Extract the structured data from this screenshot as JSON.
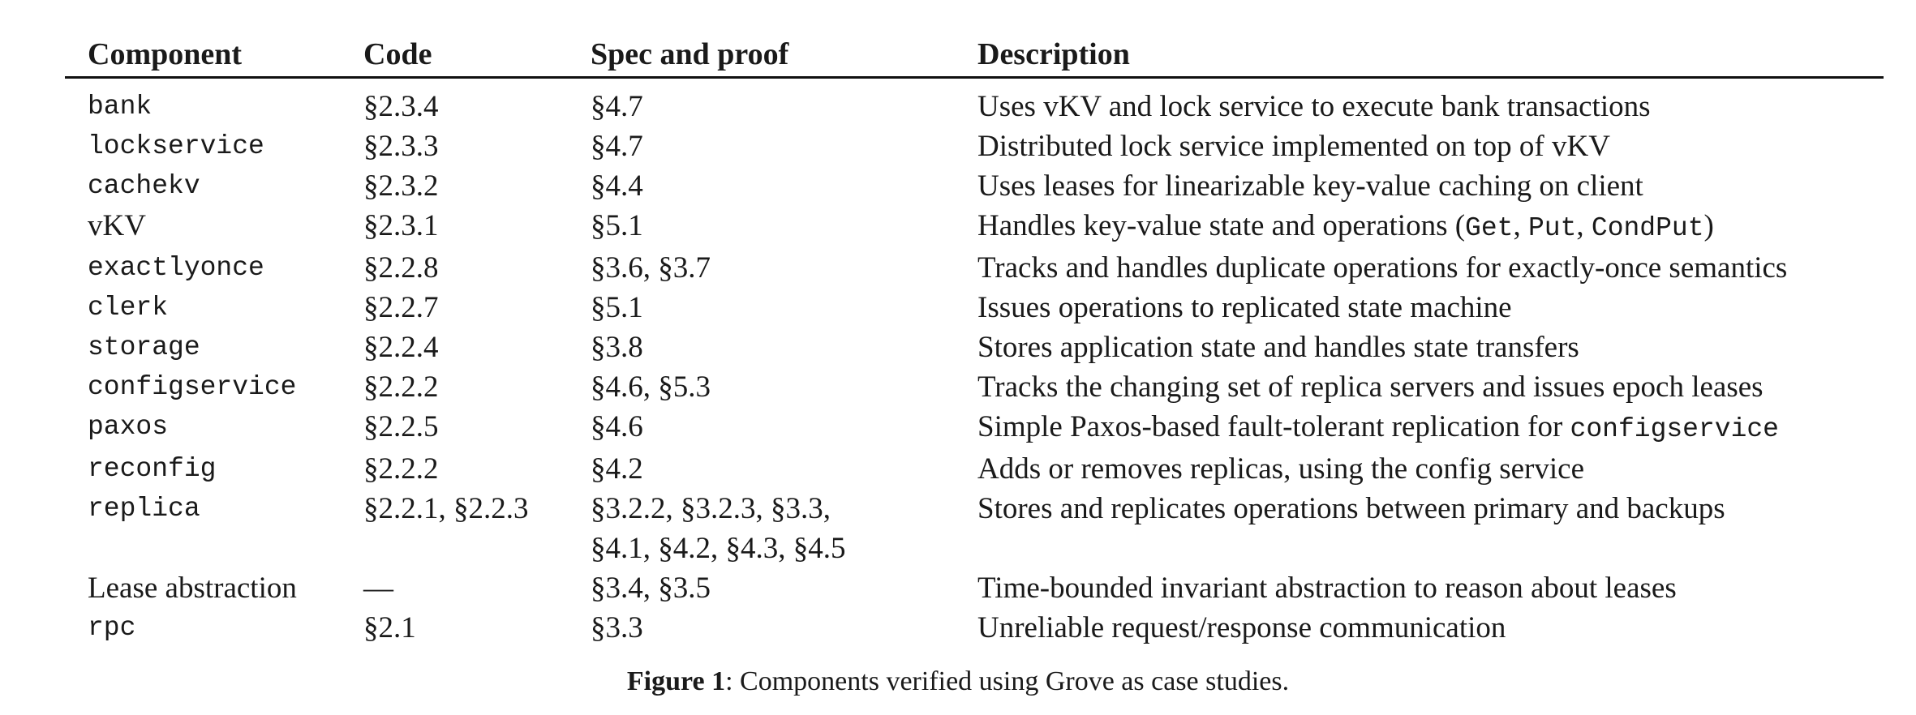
{
  "table": {
    "headers": [
      "Component",
      "Code",
      "Spec and proof",
      "Description"
    ],
    "rows": [
      {
        "component": "bank",
        "component_mono": true,
        "code": "§2.3.4",
        "spec": [
          "§4.7"
        ],
        "desc": [
          {
            "t": "Uses vKV and lock service to execute bank transactions"
          }
        ]
      },
      {
        "component": "lockservice",
        "component_mono": true,
        "code": "§2.3.3",
        "spec": [
          "§4.7"
        ],
        "desc": [
          {
            "t": "Distributed lock service implemented on top of vKV"
          }
        ]
      },
      {
        "component": "cachekv",
        "component_mono": true,
        "code": "§2.3.2",
        "spec": [
          "§4.4"
        ],
        "desc": [
          {
            "t": "Uses leases for linearizable key-value caching on client"
          }
        ]
      },
      {
        "component": "vKV",
        "component_mono": false,
        "code": "§2.3.1",
        "spec": [
          "§5.1"
        ],
        "desc": [
          {
            "t": "Handles key-value state and operations ("
          },
          {
            "t": "Get",
            "mono": true
          },
          {
            "t": ", "
          },
          {
            "t": "Put",
            "mono": true
          },
          {
            "t": ", "
          },
          {
            "t": "CondPut",
            "mono": true
          },
          {
            "t": ")"
          }
        ]
      },
      {
        "component": "exactlyonce",
        "component_mono": true,
        "code": "§2.2.8",
        "spec": [
          "§3.6, §3.7"
        ],
        "desc": [
          {
            "t": "Tracks and handles duplicate operations for exactly-once semantics"
          }
        ]
      },
      {
        "component": "clerk",
        "component_mono": true,
        "code": "§2.2.7",
        "spec": [
          "§5.1"
        ],
        "desc": [
          {
            "t": "Issues operations to replicated state machine"
          }
        ]
      },
      {
        "component": "storage",
        "component_mono": true,
        "code": "§2.2.4",
        "spec": [
          "§3.8"
        ],
        "desc": [
          {
            "t": "Stores application state and handles state transfers"
          }
        ]
      },
      {
        "component": "configservice",
        "component_mono": true,
        "code": "§2.2.2",
        "spec": [
          "§4.6, §5.3"
        ],
        "desc": [
          {
            "t": "Tracks the changing set of replica servers and issues epoch leases"
          }
        ]
      },
      {
        "component": "paxos",
        "component_mono": true,
        "code": "§2.2.5",
        "spec": [
          "§4.6"
        ],
        "desc": [
          {
            "t": "Simple Paxos-based fault-tolerant replication for "
          },
          {
            "t": "configservice",
            "mono": true
          }
        ]
      },
      {
        "component": "reconfig",
        "component_mono": true,
        "code": "§2.2.2",
        "spec": [
          "§4.2"
        ],
        "desc": [
          {
            "t": "Adds or removes replicas, using the config service"
          }
        ]
      },
      {
        "component": "replica",
        "component_mono": true,
        "code": "§2.2.1, §2.2.3",
        "spec": [
          "§3.2.2, §3.2.3, §3.3,",
          "§4.1, §4.2, §4.3, §4.5"
        ],
        "desc": [
          {
            "t": "Stores and replicates operations between primary and backups"
          }
        ]
      },
      {
        "component": "Lease abstraction",
        "component_mono": false,
        "code": "—",
        "spec": [
          "§3.4, §3.5"
        ],
        "desc": [
          {
            "t": "Time-bounded invariant abstraction to reason about leases"
          }
        ]
      },
      {
        "component": "rpc",
        "component_mono": true,
        "code": "§2.1",
        "spec": [
          "§3.3"
        ],
        "desc": [
          {
            "t": "Unreliable request/response communication"
          }
        ]
      }
    ]
  },
  "caption": {
    "label": "Figure 1",
    "text": ": Components verified using Grove as case studies."
  }
}
